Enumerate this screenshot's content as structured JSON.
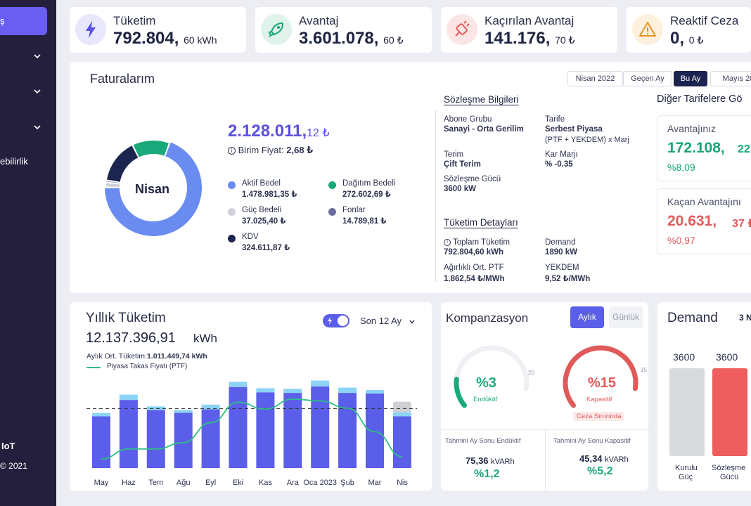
{
  "sidebar": {
    "active_item": "ş",
    "item_fragment": "ebilirlik",
    "brand": "IoT",
    "copyright": "© 2021"
  },
  "kpis": [
    {
      "title": "Tüketim",
      "main": "792.804,",
      "sub": "60 kWh",
      "icon": "lightning-icon",
      "color": "#5b50e0"
    },
    {
      "title": "Avantaj",
      "main": "3.601.078,",
      "sub": "60 ₺",
      "icon": "rocket-icon",
      "color": "#16a674"
    },
    {
      "title": "Kaçırılan Avantaj",
      "main": "141.176,",
      "sub": "70 ₺",
      "icon": "plug-icon",
      "color": "#e05a5a"
    },
    {
      "title": "Reaktif Ceza",
      "main": "0,",
      "sub": "0 ₺",
      "icon": "warning-icon",
      "color": "#e8932a"
    }
  ],
  "invoices": {
    "title": "Faturalarım",
    "period_buttons": [
      "Nisan 2022",
      "Geçen Ay",
      "Bu Ay",
      "Mayıs 20"
    ],
    "active_period": "Bu Ay",
    "donut_center": "Nisan",
    "total_main": "2.128.011,",
    "total_sub": "12 ₺",
    "unit_price_label": "Birim Fiyat:",
    "unit_price_value": "2,68 ₺",
    "legend": [
      {
        "name": "Aktif Bedel",
        "value": "1.478.981,35 ₺",
        "color": "#6a8cf0"
      },
      {
        "name": "Dağıtım Bedeli",
        "value": "272.602,69 ₺",
        "color": "#1aa97a"
      },
      {
        "name": "Güç Bedeli",
        "value": "37.025,40 ₺",
        "color": "#cfd2d9"
      },
      {
        "name": "Fonlar",
        "value": "14.789,81 ₺",
        "color": "#6a6fa0"
      },
      {
        "name": "KDV",
        "value": "324.611,87 ₺",
        "color": "#1c2550"
      }
    ],
    "donut_shares": [
      0.695,
      0.128,
      0.017,
      0.007,
      0.153
    ],
    "contract": {
      "title": "Sözleşme Bilgileri",
      "abone_label": "Abone Grubu",
      "abone_value": "Sanayi - Orta Gerilim",
      "tarife_label": "Tarife",
      "tarife_value1": "Serbest Piyasa",
      "tarife_value2": "(PTF + YEKDEM) x Marj",
      "terim_label": "Terim",
      "terim_value": "Çift Terim",
      "kar_label": "Kar Marjı",
      "kar_value": "% -0.35",
      "guc_label": "Sözleşme Gücü",
      "guc_value": "3600 kW"
    },
    "consumption": {
      "title": "Tüketim Detayları",
      "total_label": "Toplam Tüketim",
      "total_value": "792.804,60 kWh",
      "demand_label": "Demand",
      "demand_value": "1890 kW",
      "ptf_label": "Ağırlıklı Ort. PTF",
      "ptf_value": "1.862,54 ₺/MWh",
      "yekdem_label": "YEKDEM",
      "yekdem_value": "9,52 ₺/MWh"
    },
    "other_tariffs": {
      "title": "Diğer Tarifelere Gö",
      "adv_label": "Avantajınız",
      "adv_value": "172.108,",
      "adv_value2": "22",
      "adv_pct": "%8,09",
      "miss_label": "Kaçan Avantajını",
      "miss_value": "20.631,",
      "miss_value2": "37 ₺",
      "miss_pct": "%0,97"
    }
  },
  "yearly": {
    "title": "Yıllık Tüketim",
    "total": "12.137.396,91",
    "unit": "kWh",
    "range_label": "Son 12 Ay",
    "avg_label": "Aylık Ort. Tüketim:",
    "avg_value": "1.011.449,74 kWh",
    "ptf_legend": "Piyasa Takas Fiyatı (PTF)"
  },
  "chart_data": {
    "type": "bar",
    "categories": [
      "May",
      "Haz",
      "Tem",
      "Ağu",
      "Eyl",
      "Eki",
      "Kas",
      "Ara",
      "Oca 2023",
      "Şub",
      "Mar",
      "Nis"
    ],
    "series": [
      {
        "values": [
          880000,
          1160000,
          990000,
          940000,
          1000000,
          1380000,
          1290000,
          1280000,
          1390000,
          1280000,
          1270000,
          880000
        ]
      },
      {
        "values": [
          60000,
          90000,
          60000,
          50000,
          80000,
          90000,
          70000,
          70000,
          100000,
          90000,
          60000,
          70000
        ]
      },
      {
        "values": [
          0,
          0,
          0,
          0,
          0,
          0,
          0,
          0,
          0,
          0,
          0,
          180000
        ]
      },
      {
        "values": [
          200,
          420,
          420,
          560,
          1000,
          1450,
          1300,
          1520,
          1480,
          1320,
          800,
          250
        ]
      }
    ],
    "series_colors": [
      "#5b5ee8",
      "#8cd3f5",
      "#cfd0d6",
      "#2ebf85"
    ],
    "average": 1011449.74,
    "ylim": [
      0,
      1700000
    ],
    "ptf_ylim": [
      0,
      2200
    ]
  },
  "compensation": {
    "title": "Kompanzasyon",
    "tab_monthly": "Aylık",
    "tab_daily": "Günlük",
    "inductive_value": "%3",
    "inductive_label": "Endüktif",
    "inductive_max": "20",
    "inductive_level": 0.15,
    "capacitive_value": "%15",
    "capacitive_label": "Kapasitif",
    "capacitive_max": "15",
    "capacitive_level": 1.0,
    "penalty_badge": "Ceza Sınırında",
    "est_ind_label": "Tahmini Ay Sonu Endüktif",
    "est_ind_value": "75,36",
    "est_ind_unit": "kVARh",
    "est_ind_pct": "%1,2",
    "est_cap_label": "Tahmini Ay Sonu Kapasitif",
    "est_cap_value": "45,34",
    "est_cap_unit": "kVARh",
    "est_cap_pct": "%5,2"
  },
  "demand": {
    "title": "Demand",
    "partial": "3 N",
    "bar1_value": "3600",
    "bar1_label1": "Kurulu",
    "bar1_label2": "Güç",
    "bar2_value": "3600",
    "bar2_label1": "Sözleşme",
    "bar2_label2": "Gücü"
  }
}
